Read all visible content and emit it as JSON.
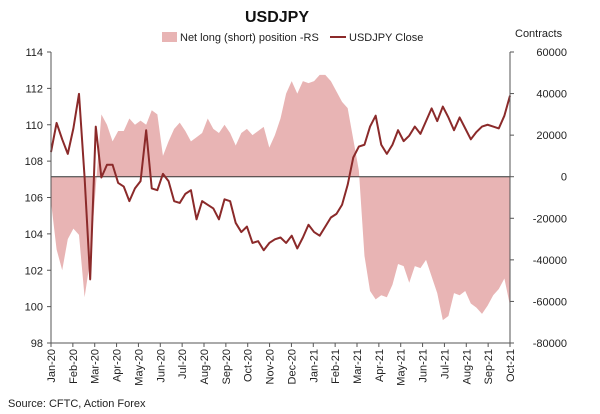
{
  "chart_data": {
    "type": "line",
    "title": "USDJPY",
    "right_axis_title": "Contracts",
    "source": "Source: CFTC, Action Forex",
    "x_labels": [
      "Jan-20",
      "Feb-20",
      "Mar-20",
      "Apr-20",
      "May-20",
      "Jun-20",
      "Jul-20",
      "Aug-20",
      "Sep-20",
      "Oct-20",
      "Nov-20",
      "Dec-20",
      "Jan-21",
      "Feb-21",
      "Mar-21",
      "Apr-21",
      "May-21",
      "Jun-21",
      "Jul-21",
      "Aug-21",
      "Sep-21",
      "Oct-21"
    ],
    "y_left": {
      "min": 98,
      "max": 114,
      "ticks": [
        "98",
        "100",
        "102",
        "104",
        "106",
        "108",
        "110",
        "112",
        "114"
      ]
    },
    "y_right": {
      "min": -80000,
      "max": 60000,
      "ticks": [
        "-80000",
        "-60000",
        "-40000",
        "-20000",
        "0",
        "20000",
        "40000",
        "60000"
      ]
    },
    "grid": false,
    "legend_position": "top-center",
    "series": [
      {
        "name": "Net long (short) position -RS",
        "kind": "area",
        "axis": "right",
        "color": "#e8b4b4",
        "values": [
          -12000,
          -35000,
          -45000,
          -30000,
          -25000,
          -28000,
          -58000,
          -40000,
          -5000,
          30000,
          25000,
          17000,
          22000,
          22000,
          28000,
          25000,
          27000,
          25000,
          32000,
          30000,
          10000,
          17000,
          23000,
          26000,
          22000,
          17000,
          19000,
          21000,
          28000,
          23000,
          21000,
          25000,
          21000,
          15000,
          21000,
          23000,
          20000,
          22000,
          24000,
          14000,
          20000,
          28000,
          40000,
          46000,
          40000,
          46000,
          45000,
          46000,
          49000,
          49000,
          46000,
          41000,
          36000,
          33000,
          18000,
          3000,
          -38000,
          -55000,
          -59000,
          -57000,
          -58000,
          -52000,
          -42000,
          -43000,
          -51000,
          -43000,
          -44000,
          -40000,
          -48000,
          -56000,
          -69000,
          -67000,
          -56000,
          -57000,
          -55000,
          -61000,
          -63000,
          -66000,
          -62000,
          -57000,
          -54000,
          -49000,
          -62000
        ]
      },
      {
        "name": "USDJPY Close",
        "kind": "line",
        "axis": "left",
        "color": "#8b2a2a",
        "values": [
          108.5,
          110.1,
          109.2,
          108.4,
          109.8,
          111.7,
          107.1,
          101.5,
          109.9,
          107.1,
          107.8,
          107.8,
          106.8,
          106.6,
          105.8,
          106.5,
          106.9,
          109.7,
          106.5,
          106.4,
          107.3,
          106.9,
          105.8,
          105.7,
          106.2,
          106.4,
          104.8,
          105.8,
          105.6,
          105.4,
          104.8,
          105.9,
          105.8,
          104.6,
          104.1,
          104.4,
          103.5,
          103.6,
          103.1,
          103.5,
          103.7,
          103.8,
          103.5,
          103.9,
          103.2,
          103.8,
          104.5,
          104.1,
          103.9,
          104.4,
          104.9,
          105.1,
          105.6,
          106.7,
          108.2,
          108.8,
          108.9,
          109.9,
          110.5,
          108.9,
          108.4,
          108.9,
          109.7,
          109.1,
          109.4,
          109.9,
          109.5,
          110.2,
          110.9,
          110.2,
          111.0,
          110.4,
          109.7,
          110.4,
          109.8,
          109.2,
          109.6,
          109.9,
          110.0,
          109.9,
          109.8,
          110.5,
          111.6
        ]
      }
    ]
  }
}
